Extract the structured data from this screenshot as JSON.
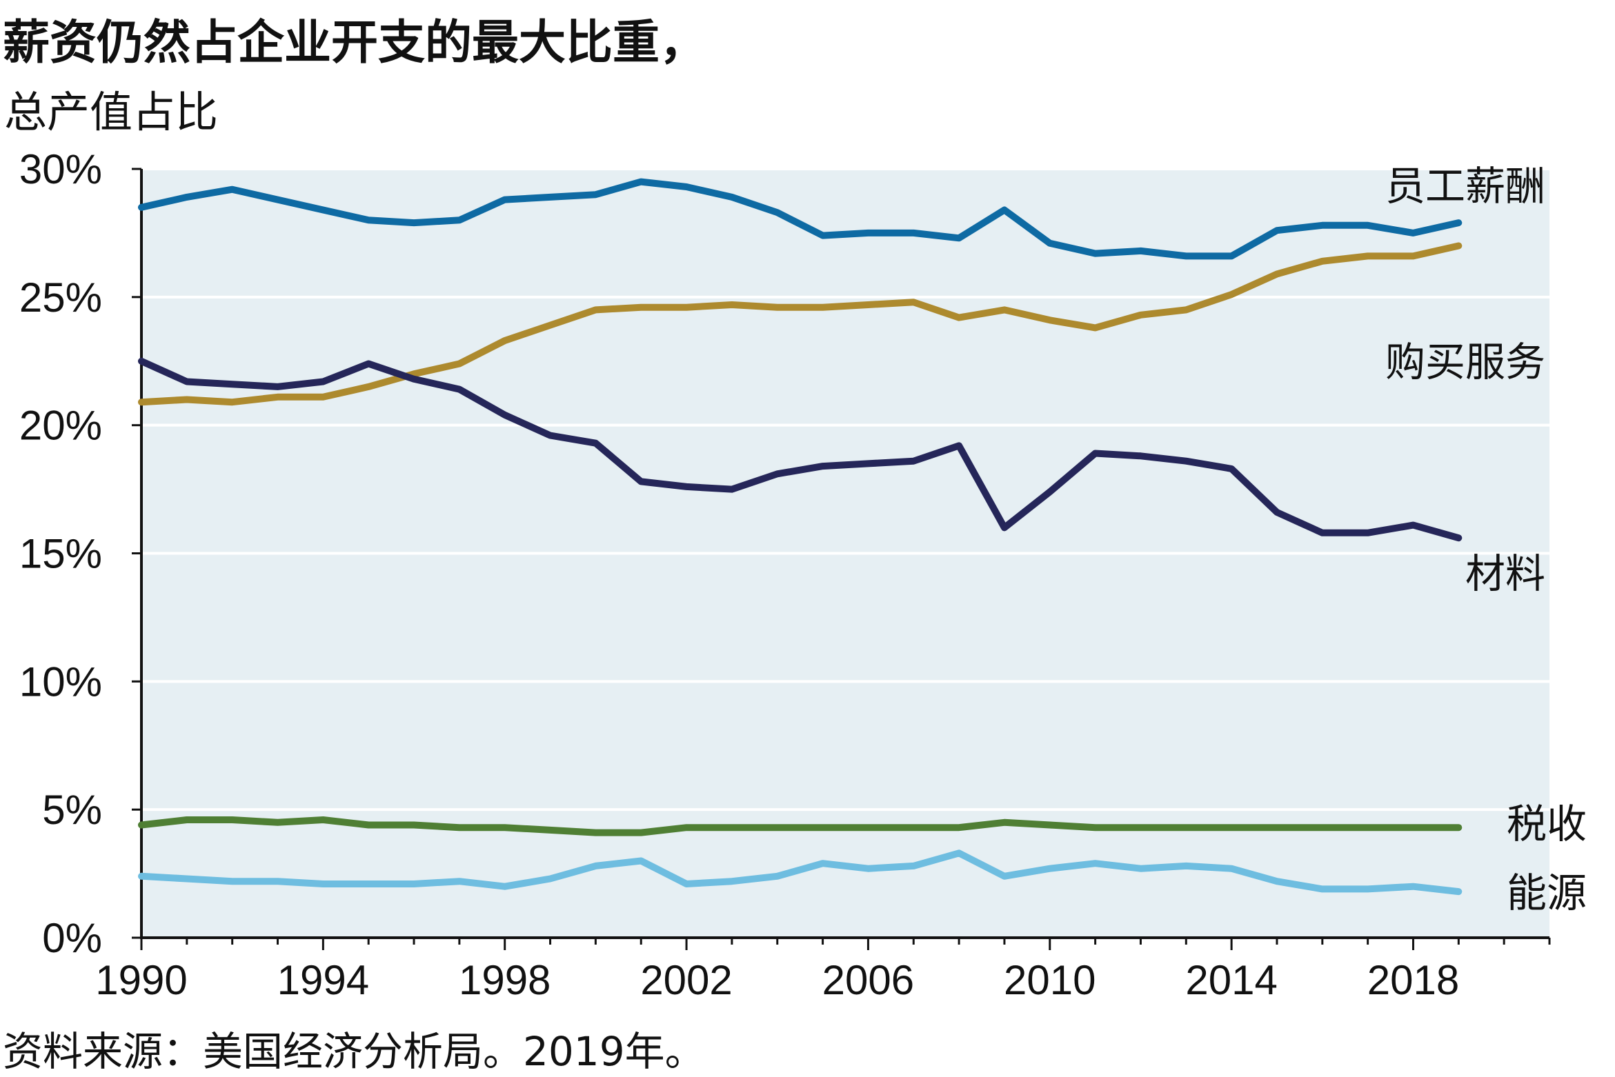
{
  "title": "薪资仍然占企业开支的最大比重，",
  "subtitle": "总产值占比",
  "source": "资料来源：美国经济分析局。2019年。",
  "chart_data": {
    "type": "line",
    "x": [
      1990,
      1991,
      1992,
      1993,
      1994,
      1995,
      1996,
      1997,
      1998,
      1999,
      2000,
      2001,
      2002,
      2003,
      2004,
      2005,
      2006,
      2007,
      2008,
      2009,
      2010,
      2011,
      2012,
      2013,
      2014,
      2015,
      2016,
      2017,
      2018,
      2019
    ],
    "xlim": [
      1990,
      2021
    ],
    "ylim": [
      0,
      30
    ],
    "x_ticks": [
      1990,
      1994,
      1998,
      2002,
      2006,
      2010,
      2014,
      2018
    ],
    "y_ticks": [
      0,
      5,
      10,
      15,
      20,
      25,
      30
    ],
    "y_tick_labels": [
      "0%",
      "5%",
      "10%",
      "15%",
      "20%",
      "25%",
      "30%"
    ],
    "grid": "horizontal",
    "background": "#e6eff3",
    "series": [
      {
        "name": "员工薪酬",
        "color": "#0e6aa3",
        "values": [
          28.5,
          28.9,
          29.2,
          28.8,
          28.4,
          28.0,
          27.9,
          28.0,
          28.8,
          28.9,
          29.0,
          29.5,
          29.3,
          28.9,
          28.3,
          27.4,
          27.5,
          27.5,
          27.3,
          28.4,
          27.1,
          26.7,
          26.8,
          26.6,
          26.6,
          27.6,
          27.8,
          27.8,
          27.5,
          27.9
        ]
      },
      {
        "name": "购买服务",
        "color": "#ad8a2e",
        "values": [
          20.9,
          21.0,
          20.9,
          21.1,
          21.1,
          21.5,
          22.0,
          22.4,
          23.3,
          23.9,
          24.5,
          24.6,
          24.6,
          24.7,
          24.6,
          24.6,
          24.7,
          24.8,
          24.2,
          24.5,
          24.1,
          23.8,
          24.3,
          24.5,
          25.1,
          25.9,
          26.4,
          26.6,
          26.6,
          27.0
        ]
      },
      {
        "name": "材料",
        "color": "#252659",
        "values": [
          22.5,
          21.7,
          21.6,
          21.5,
          21.7,
          22.4,
          21.8,
          21.4,
          20.4,
          19.6,
          19.3,
          17.8,
          17.6,
          17.5,
          18.1,
          18.4,
          18.5,
          18.6,
          19.2,
          16.0,
          17.4,
          18.9,
          18.8,
          18.6,
          18.3,
          16.6,
          15.8,
          15.8,
          16.1,
          15.6
        ]
      },
      {
        "name": "税收",
        "color": "#4f7f34",
        "values": [
          4.4,
          4.6,
          4.6,
          4.5,
          4.6,
          4.4,
          4.4,
          4.3,
          4.3,
          4.2,
          4.1,
          4.1,
          4.3,
          4.3,
          4.3,
          4.3,
          4.3,
          4.3,
          4.3,
          4.5,
          4.4,
          4.3,
          4.3,
          4.3,
          4.3,
          4.3,
          4.3,
          4.3,
          4.3,
          4.3
        ]
      },
      {
        "name": "能源",
        "color": "#6ebde0",
        "values": [
          2.4,
          2.3,
          2.2,
          2.2,
          2.1,
          2.1,
          2.1,
          2.2,
          2.0,
          2.3,
          2.8,
          3.0,
          2.1,
          2.2,
          2.4,
          2.9,
          2.7,
          2.8,
          3.3,
          2.4,
          2.7,
          2.9,
          2.7,
          2.8,
          2.7,
          2.2,
          1.9,
          1.9,
          2.0,
          1.8
        ]
      }
    ]
  }
}
